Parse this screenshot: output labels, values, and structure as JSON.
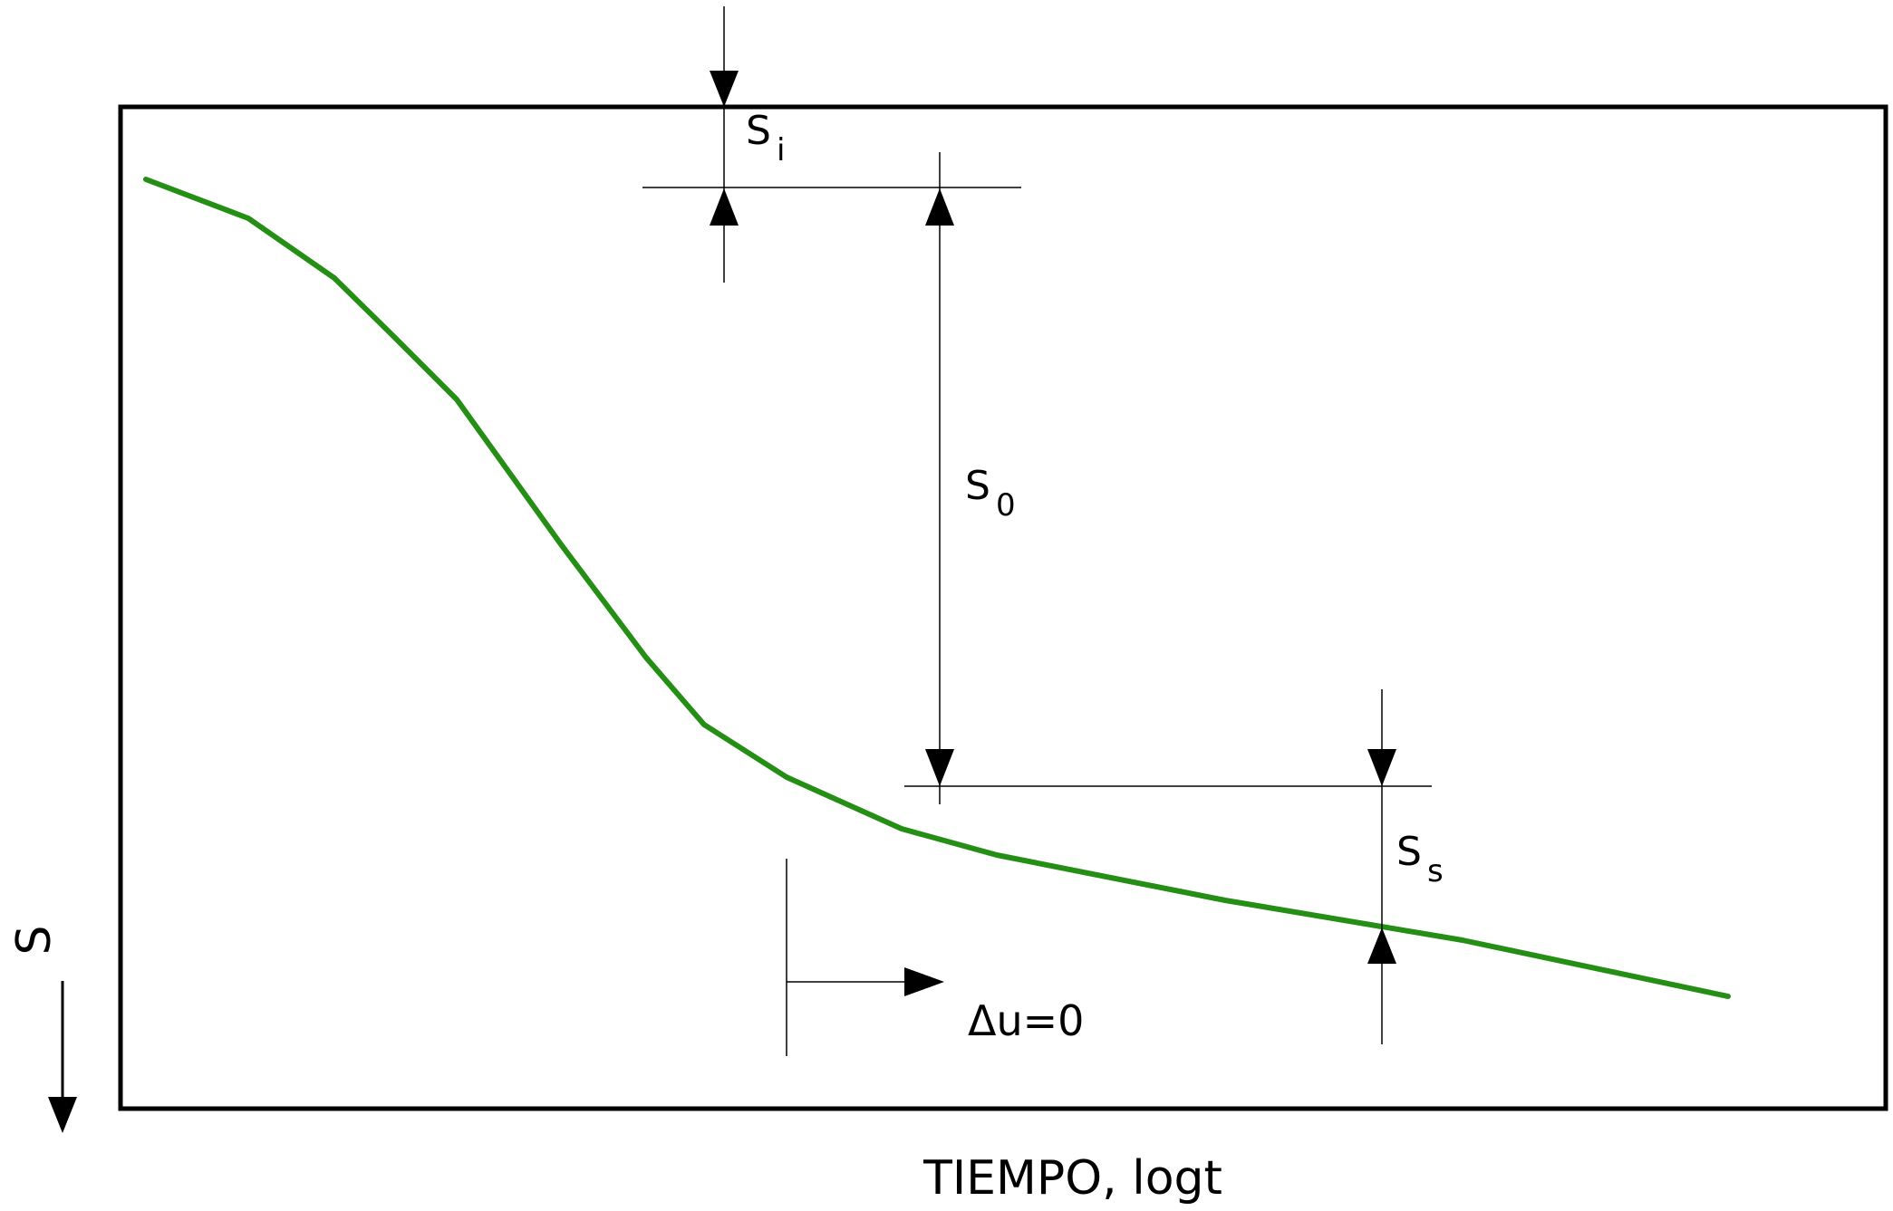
{
  "labels": {
    "s_i": {
      "symbol": "S",
      "subscript": "i"
    },
    "s_0": {
      "symbol": "S",
      "subscript": "0"
    },
    "s_s": {
      "symbol": "S",
      "subscript": "s"
    },
    "delta_u": "Δu=0",
    "vertical_axis": "S",
    "horizontal_axis": "TIEMPO, logt"
  }
}
